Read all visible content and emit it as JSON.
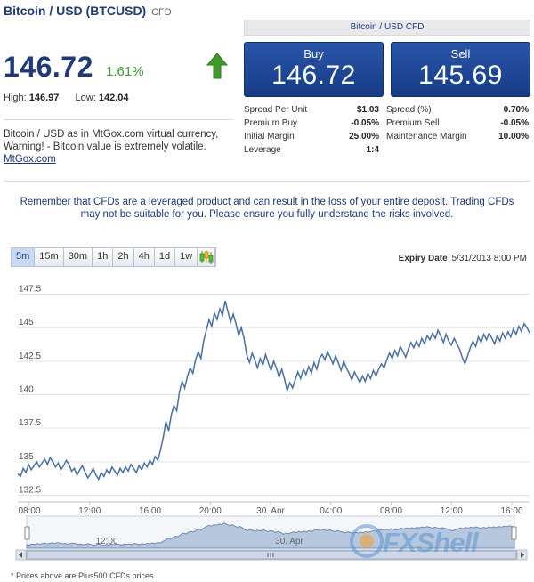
{
  "instrument": {
    "title": "Bitcoin / USD (BTCUSD)",
    "suffix": "CFD",
    "price": "146.72",
    "change": "1.61%",
    "direction_icon": "up-arrow-icon",
    "high_label": "High:",
    "high": "146.97",
    "low_label": "Low:",
    "low": "142.04",
    "description": "Bitcoin / USD as in MtGox.com virtual currency, Warning! - Bitcoin value is extremely volatile.",
    "link_text": "MtGox.com"
  },
  "trade": {
    "header": "Bitcoin / USD CFD",
    "buy_label": "Buy",
    "buy_price": "146.72",
    "sell_label": "Sell",
    "sell_price": "145.69"
  },
  "specs_left": [
    {
      "label": "Spread Per Unit",
      "value": "$1.03"
    },
    {
      "label": "Premium Buy",
      "value": "-0.05%"
    },
    {
      "label": "Initial Margin",
      "value": "25.00%"
    },
    {
      "label": "Leverage",
      "value": "1:4"
    }
  ],
  "specs_right": [
    {
      "label": "Spread (%)",
      "value": "0.70%"
    },
    {
      "label": "Premium Sell",
      "value": "-0.05%"
    },
    {
      "label": "Maintenance Margin",
      "value": "10.00%"
    }
  ],
  "warning": "Remember that CFDs are a leveraged product and can result in the loss of your entire deposit. Trading CFDs may not be suitable for you. Please ensure you fully understand the risks involved.",
  "periods": [
    "5m",
    "15m",
    "30m",
    "1h",
    "2h",
    "4h",
    "1d",
    "1w"
  ],
  "active_period": "5m",
  "chart_type_icon": "candlestick-icon",
  "expiry": {
    "label": "Expiry Date",
    "value": "5/31/2013 8:00 PM"
  },
  "colors": {
    "brand": "#1f3a7a",
    "up": "#3a9d3a",
    "line": "#4a6fa5",
    "area": "#b7c7dd"
  },
  "chart_data": {
    "type": "line",
    "title": "",
    "xlabel": "",
    "ylabel": "",
    "x_ticks": [
      "08:00",
      "12:00",
      "16:00",
      "20:00",
      "30. Apr",
      "04:00",
      "08:00",
      "12:00",
      "16:00"
    ],
    "y_ticks": [
      132.5,
      135,
      137.5,
      140,
      142.5,
      145,
      147.5
    ],
    "ylim": [
      132,
      148.2
    ],
    "grid": "horizontal",
    "series": [
      {
        "values": [
          134.1,
          133.9,
          134.5,
          134.2,
          134.8,
          134.4,
          134.7,
          135.0,
          134.6,
          134.9,
          135.2,
          134.8,
          135.3,
          135.0,
          134.6,
          134.9,
          134.4,
          134.7,
          135.1,
          134.8,
          134.3,
          134.5,
          134.0,
          134.4,
          134.7,
          134.2,
          133.8,
          134.1,
          134.5,
          134.0,
          133.7,
          134.2,
          133.9,
          134.4,
          134.1,
          134.6,
          134.3,
          134.0,
          134.5,
          134.2,
          134.6,
          134.3,
          134.8,
          134.5,
          134.2,
          134.7,
          134.4,
          134.9,
          134.6,
          135.1,
          134.8,
          135.4,
          135.1,
          135.9,
          136.8,
          138.0,
          137.3,
          138.5,
          139.2,
          138.8,
          140.2,
          141.0,
          140.5,
          141.4,
          142.0,
          141.6,
          142.6,
          143.2,
          142.7,
          144.0,
          144.8,
          145.6,
          145.1,
          146.1,
          145.6,
          146.4,
          145.9,
          147.0,
          146.2,
          145.4,
          146.0,
          145.3,
          144.4,
          145.0,
          144.2,
          143.0,
          142.4,
          143.1,
          142.6,
          142.0,
          142.7,
          142.2,
          143.0,
          142.4,
          141.8,
          142.5,
          142.0,
          141.3,
          141.9,
          141.2,
          140.3,
          140.9,
          140.5,
          141.1,
          141.7,
          141.2,
          141.9,
          141.5,
          142.1,
          141.6,
          142.4,
          141.9,
          142.7,
          143.0,
          142.6,
          143.2,
          142.8,
          142.3,
          142.9,
          142.4,
          141.8,
          142.5,
          142.0,
          141.6,
          141.1,
          141.7,
          141.3,
          140.9,
          141.4,
          141.0,
          141.6,
          141.2,
          141.8,
          141.4,
          141.9,
          142.3,
          142.0,
          142.6,
          143.1,
          142.7,
          143.3,
          142.9,
          143.6,
          143.2,
          142.8,
          143.4,
          143.9,
          143.5,
          144.0,
          143.6,
          144.2,
          143.8,
          144.4,
          144.1,
          144.6,
          144.2,
          144.8,
          144.4,
          143.9,
          144.5,
          144.0,
          143.7,
          144.2,
          143.8,
          143.4,
          142.8,
          142.3,
          142.9,
          143.5,
          144.0,
          143.6,
          144.3,
          143.9,
          144.5,
          144.1,
          144.6,
          144.2,
          143.8,
          144.4,
          144.0,
          144.6,
          144.2,
          144.7,
          144.3,
          144.9,
          144.5,
          145.1,
          144.7,
          145.3,
          145.0,
          144.6
        ]
      }
    ]
  },
  "navigator": {
    "x_ticks": [
      "12:00",
      "30. Apr"
    ],
    "scroll_icon": "scroll-grip-icon"
  },
  "footnote": "* Prices above are Plus500 CFDs prices.",
  "watermark": "FXShell"
}
